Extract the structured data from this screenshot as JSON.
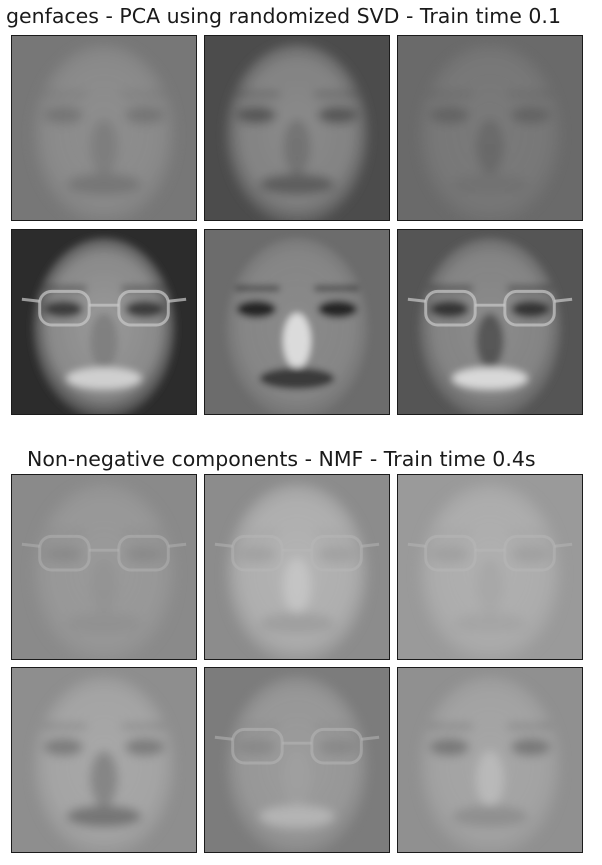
{
  "figure": {
    "sections": [
      {
        "title": "genfaces - PCA using randomized SVD - Train time 0.1",
        "faces": [
          {
            "bg": "#777777",
            "face": "#8e8e8e",
            "eye": "#686868",
            "nose": "#7b7b7b",
            "mouth": "#6e6e6e",
            "glasses": false,
            "contrast": 0.25
          },
          {
            "bg": "#4c4c4c",
            "face": "#8c8c8c",
            "eye": "#4a4a4a",
            "nose": "#6e6e6e",
            "mouth": "#555555",
            "glasses": false,
            "contrast": 0.5
          },
          {
            "bg": "#6a6a6a",
            "face": "#7a7a7a",
            "eye": "#5a5a5a",
            "nose": "#666666",
            "mouth": "#707070",
            "glasses": false,
            "contrast": 0.35
          },
          {
            "bg": "#2c2c2c",
            "face": "#9a9a9a",
            "eye": "#3a3a3a",
            "nose": "#7a7a7a",
            "mouth": "#d2d2d2",
            "glasses": true,
            "contrast": 0.9
          },
          {
            "bg": "#6c6c6c",
            "face": "#8a8a8a",
            "eye": "#262626",
            "nose": "#f0f0f0",
            "mouth": "#3a3a3a",
            "glasses": false,
            "contrast": 1.0
          },
          {
            "bg": "#555555",
            "face": "#8c8c8c",
            "eye": "#303030",
            "nose": "#4a4a4a",
            "mouth": "#dcdcdc",
            "glasses": true,
            "contrast": 0.9
          }
        ]
      },
      {
        "title": "Non-negative components - NMF - Train time 0.4s",
        "faces": [
          {
            "bg": "#8a8a8a",
            "face": "#9a9a9a",
            "eye": "#828282",
            "nose": "#929292",
            "mouth": "#8e8e8e",
            "glasses": true,
            "contrast": 0.25
          },
          {
            "bg": "#8c8c8c",
            "face": "#b4b4b4",
            "eye": "#9c9c9c",
            "nose": "#c8c8c8",
            "mouth": "#9a9a9a",
            "glasses": true,
            "contrast": 0.35
          },
          {
            "bg": "#9a9a9a",
            "face": "#b0b0b0",
            "eye": "#9a9a9a",
            "nose": "#a6a6a6",
            "mouth": "#a2a2a2",
            "glasses": true,
            "contrast": 0.3
          },
          {
            "bg": "#8e8e8e",
            "face": "#a8a8a8",
            "eye": "#707070",
            "nose": "#7e7e7e",
            "mouth": "#6a6a6a",
            "glasses": false,
            "contrast": 0.5
          },
          {
            "bg": "#7c7c7c",
            "face": "#9c9c9c",
            "eye": "#858585",
            "nose": "#a0a0a0",
            "mouth": "#bcbcbc",
            "glasses": true,
            "contrast": 0.45
          },
          {
            "bg": "#909090",
            "face": "#a6a6a6",
            "eye": "#6a6a6a",
            "nose": "#bebebe",
            "mouth": "#8a8a8a",
            "glasses": false,
            "contrast": 0.45
          }
        ]
      }
    ]
  }
}
